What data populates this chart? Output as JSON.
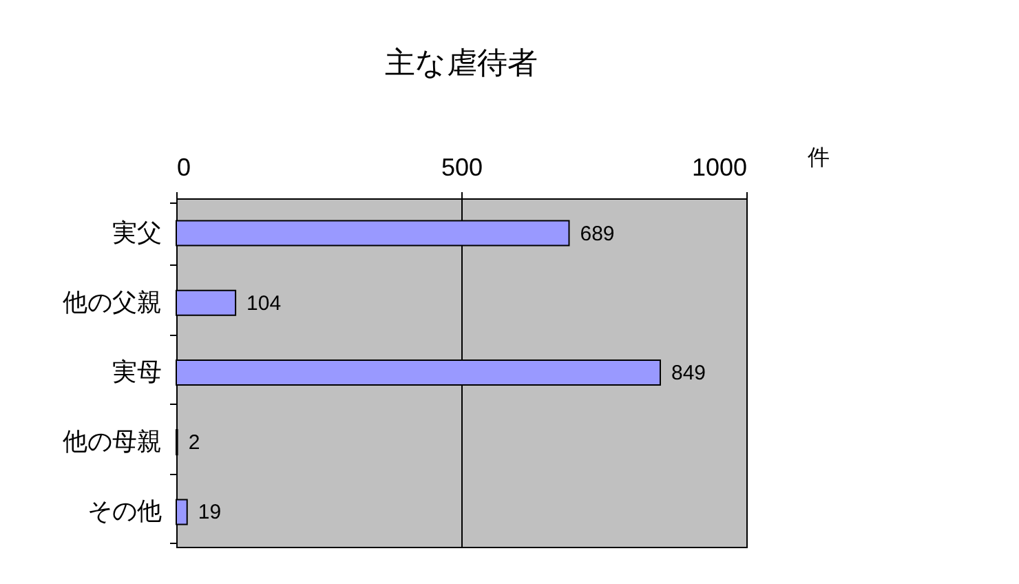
{
  "chart_data": {
    "type": "bar",
    "orientation": "horizontal",
    "title": "主な虐待者",
    "xlabel": "件",
    "categories": [
      "実父",
      "他の父親",
      "実母",
      "他の母親",
      "その他"
    ],
    "values": [
      689,
      104,
      849,
      2,
      19
    ],
    "color": "#9999ff",
    "xlim": [
      0,
      1000
    ],
    "xticks": [
      0,
      500,
      1000
    ],
    "grid": "x",
    "data_labels": true
  }
}
